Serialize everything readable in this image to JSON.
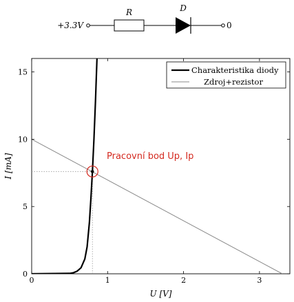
{
  "circuit": {
    "source_label": "+3.3V",
    "resistor_label": "R",
    "diode_label": "D",
    "ground_label": "0"
  },
  "chart_data": {
    "type": "line",
    "xlabel": "U [V]",
    "ylabel": "I [mA]",
    "xlim": [
      0,
      3.4
    ],
    "ylim": [
      0,
      16
    ],
    "x_ticks": [
      0,
      1,
      2,
      3
    ],
    "y_ticks": [
      0,
      5,
      10,
      15
    ],
    "grid": false,
    "legend_position": "top-right",
    "series": [
      {
        "name": "Charakteristika diody",
        "style": "thick-black",
        "color": "#000000",
        "points": [
          [
            0,
            0
          ],
          [
            0.5,
            0.03
          ],
          [
            0.55,
            0.08
          ],
          [
            0.6,
            0.2
          ],
          [
            0.65,
            0.45
          ],
          [
            0.7,
            1.1
          ],
          [
            0.73,
            2.0
          ],
          [
            0.76,
            3.8
          ],
          [
            0.78,
            5.6
          ],
          [
            0.8,
            7.6
          ],
          [
            0.82,
            10.0
          ],
          [
            0.84,
            12.8
          ],
          [
            0.86,
            16.0
          ]
        ]
      },
      {
        "name": "Zdroj+rezistor",
        "style": "thin-gray",
        "color": "#888888",
        "points": [
          [
            0,
            10
          ],
          [
            3.3,
            0
          ]
        ]
      }
    ],
    "operating_point": {
      "label": "Pracovní bod Up, Ip",
      "x": 0.8,
      "y": 7.6,
      "color": "#d42a20"
    }
  }
}
